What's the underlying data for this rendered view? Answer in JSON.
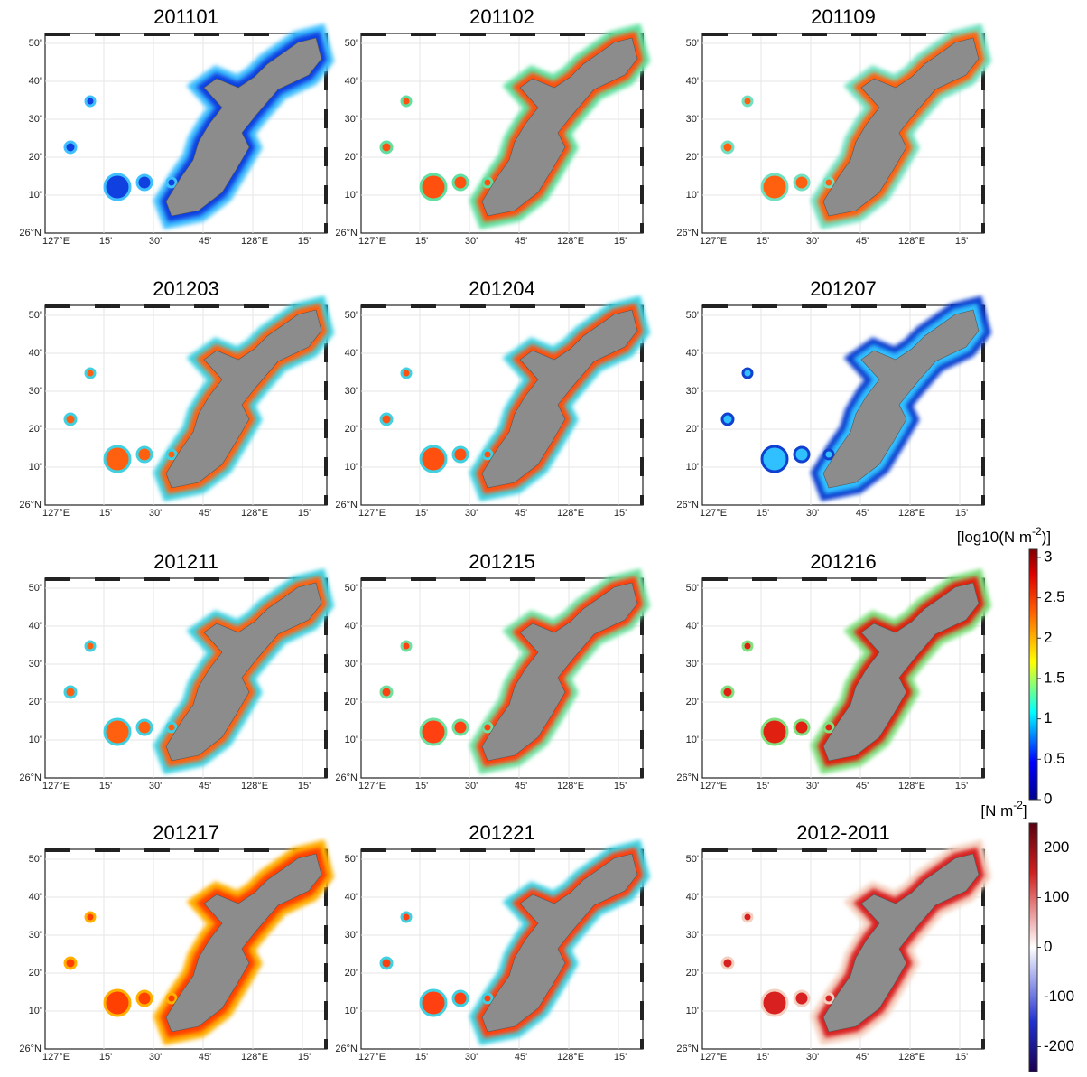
{
  "panels": [
    {
      "title": "201101"
    },
    {
      "title": "201102"
    },
    {
      "title": "201109"
    },
    {
      "title": "201203"
    },
    {
      "title": "201204"
    },
    {
      "title": "201207"
    },
    {
      "title": "201211"
    },
    {
      "title": "201215"
    },
    {
      "title": "201216"
    },
    {
      "title": "201217"
    },
    {
      "title": "201221"
    },
    {
      "title": "2012-2011"
    }
  ],
  "axes": {
    "lat": [
      "50'",
      "40'",
      "30'",
      "20'",
      "10'",
      "26°N"
    ],
    "lon": [
      "127°E",
      "15'",
      "30'",
      "45'",
      "128°E",
      "15'"
    ]
  },
  "colorbars": [
    {
      "label": "[log10(N m",
      "label_sup": "-2",
      "label_end": ")]",
      "lim": [
        0,
        3.1
      ],
      "ticks": [
        0,
        0.5,
        1,
        1.5,
        2,
        2.5,
        3
      ]
    },
    {
      "label": "[N m",
      "label_sup": "-2",
      "label_end": "]",
      "lim": [
        -250,
        250
      ],
      "ticks": [
        -200,
        -100,
        0,
        100,
        200
      ]
    }
  ]
}
